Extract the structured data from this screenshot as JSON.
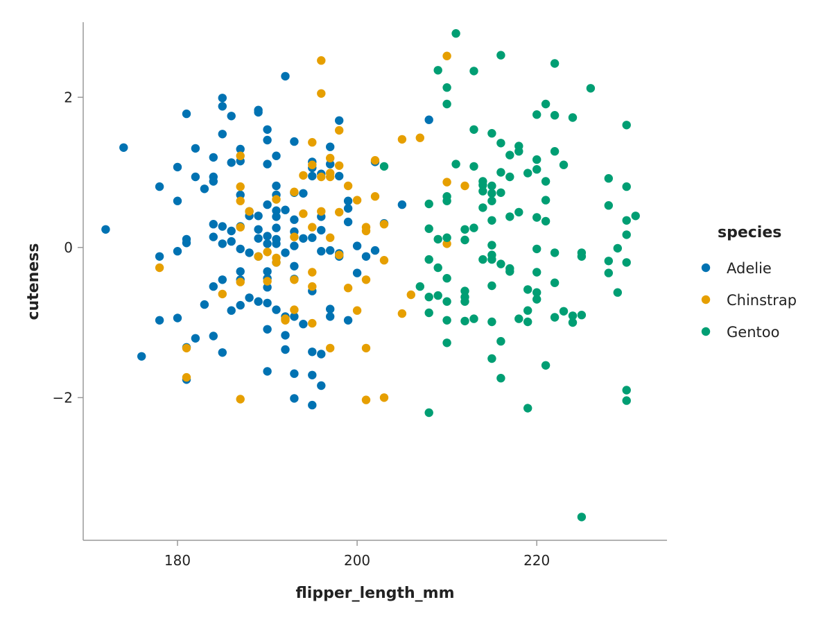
{
  "chart_data": {
    "type": "scatter",
    "xlabel": "flipper_length_mm",
    "ylabel": "cuteness",
    "xlim": [
      169.5,
      234.5
    ],
    "ylim": [
      -3.9,
      3.0
    ],
    "xticks": [
      180,
      200,
      220
    ],
    "xtick_labels": [
      "180",
      "200",
      "220"
    ],
    "yticks": [
      -2,
      0,
      2
    ],
    "ytick_labels": [
      "−2",
      "0",
      "2"
    ],
    "grid": false,
    "legend": {
      "title": "species",
      "placement": "right"
    },
    "series": [
      {
        "name": "Adelie",
        "color": "#0072B2",
        "points": [
          [
            172,
            0.24
          ],
          [
            174,
            1.33
          ],
          [
            176,
            -1.45
          ],
          [
            178,
            0.81
          ],
          [
            178,
            -0.12
          ],
          [
            178,
            -0.97
          ],
          [
            180,
            1.07
          ],
          [
            180,
            0.62
          ],
          [
            180,
            -0.05
          ],
          [
            180,
            -0.94
          ],
          [
            181,
            1.78
          ],
          [
            181,
            0.11
          ],
          [
            181,
            0.06
          ],
          [
            181,
            -1.33
          ],
          [
            181,
            -1.76
          ],
          [
            182,
            1.32
          ],
          [
            182,
            0.94
          ],
          [
            182,
            -1.21
          ],
          [
            183,
            0.78
          ],
          [
            183,
            -0.76
          ],
          [
            184,
            1.2
          ],
          [
            184,
            0.94
          ],
          [
            184,
            0.88
          ],
          [
            184,
            0.31
          ],
          [
            184,
            0.14
          ],
          [
            184,
            -0.52
          ],
          [
            184,
            -1.18
          ],
          [
            185,
            1.99
          ],
          [
            185,
            1.88
          ],
          [
            185,
            1.51
          ],
          [
            185,
            0.28
          ],
          [
            185,
            0.05
          ],
          [
            185,
            -0.43
          ],
          [
            185,
            -1.4
          ],
          [
            186,
            1.75
          ],
          [
            186,
            1.13
          ],
          [
            186,
            0.22
          ],
          [
            186,
            0.08
          ],
          [
            186,
            -0.84
          ],
          [
            187,
            1.31
          ],
          [
            187,
            1.15
          ],
          [
            187,
            0.7
          ],
          [
            187,
            0.28
          ],
          [
            187,
            -0.02
          ],
          [
            187,
            -0.32
          ],
          [
            187,
            -0.43
          ],
          [
            187,
            -0.77
          ],
          [
            188,
            0.48
          ],
          [
            188,
            0.42
          ],
          [
            188,
            -0.07
          ],
          [
            188,
            -0.67
          ],
          [
            189,
            1.83
          ],
          [
            189,
            1.8
          ],
          [
            189,
            0.42
          ],
          [
            189,
            0.24
          ],
          [
            189,
            0.12
          ],
          [
            189,
            -0.12
          ],
          [
            189,
            -0.72
          ],
          [
            190,
            1.57
          ],
          [
            190,
            1.43
          ],
          [
            190,
            1.11
          ],
          [
            190,
            0.57
          ],
          [
            190,
            0.15
          ],
          [
            190,
            0.05
          ],
          [
            190,
            -0.32
          ],
          [
            190,
            -0.41
          ],
          [
            190,
            -0.53
          ],
          [
            190,
            -0.74
          ],
          [
            190,
            -1.09
          ],
          [
            190,
            -1.65
          ],
          [
            191,
            1.22
          ],
          [
            191,
            0.82
          ],
          [
            191,
            0.7
          ],
          [
            191,
            0.49
          ],
          [
            191,
            0.41
          ],
          [
            191,
            0.26
          ],
          [
            191,
            0.11
          ],
          [
            191,
            0.05
          ],
          [
            191,
            -0.2
          ],
          [
            191,
            -0.83
          ],
          [
            192,
            2.28
          ],
          [
            192,
            0.5
          ],
          [
            192,
            -0.07
          ],
          [
            192,
            -0.92
          ],
          [
            192,
            -1.17
          ],
          [
            192,
            -1.36
          ],
          [
            193,
            1.41
          ],
          [
            193,
            0.73
          ],
          [
            193,
            0.37
          ],
          [
            193,
            0.21
          ],
          [
            193,
            0.02
          ],
          [
            193,
            -0.25
          ],
          [
            193,
            -0.42
          ],
          [
            193,
            -0.92
          ],
          [
            193,
            -1.68
          ],
          [
            193,
            -2.01
          ],
          [
            194,
            0.72
          ],
          [
            194,
            0.12
          ],
          [
            194,
            -1.02
          ],
          [
            195,
            1.14
          ],
          [
            195,
            1.06
          ],
          [
            195,
            0.95
          ],
          [
            195,
            0.13
          ],
          [
            195,
            -0.58
          ],
          [
            195,
            -1.39
          ],
          [
            195,
            -1.7
          ],
          [
            195,
            -2.1
          ],
          [
            196,
            0.98
          ],
          [
            196,
            0.41
          ],
          [
            196,
            0.23
          ],
          [
            196,
            -0.05
          ],
          [
            196,
            -1.42
          ],
          [
            196,
            -1.84
          ],
          [
            197,
            1.34
          ],
          [
            197,
            1.11
          ],
          [
            197,
            -0.04
          ],
          [
            197,
            -0.82
          ],
          [
            197,
            -0.92
          ],
          [
            198,
            1.69
          ],
          [
            198,
            0.95
          ],
          [
            198,
            -0.08
          ],
          [
            198,
            -0.12
          ],
          [
            199,
            0.62
          ],
          [
            199,
            0.52
          ],
          [
            199,
            0.34
          ],
          [
            199,
            -0.97
          ],
          [
            200,
            0.02
          ],
          [
            200,
            -0.34
          ],
          [
            201,
            -0.12
          ],
          [
            202,
            1.14
          ],
          [
            202,
            -0.04
          ],
          [
            203,
            0.32
          ],
          [
            205,
            0.57
          ],
          [
            208,
            1.7
          ]
        ]
      },
      {
        "name": "Chinstrap",
        "color": "#E69F00",
        "points": [
          [
            178,
            -0.27
          ],
          [
            181,
            -1.34
          ],
          [
            181,
            -1.73
          ],
          [
            185,
            -0.62
          ],
          [
            187,
            1.22
          ],
          [
            187,
            0.81
          ],
          [
            187,
            0.62
          ],
          [
            187,
            0.27
          ],
          [
            187,
            -0.46
          ],
          [
            187,
            -2.02
          ],
          [
            188,
            0.48
          ],
          [
            189,
            -0.12
          ],
          [
            190,
            -0.06
          ],
          [
            190,
            -0.45
          ],
          [
            191,
            0.64
          ],
          [
            191,
            -0.14
          ],
          [
            191,
            -0.2
          ],
          [
            192,
            -0.95
          ],
          [
            192,
            -0.97
          ],
          [
            193,
            0.74
          ],
          [
            193,
            0.14
          ],
          [
            193,
            -0.43
          ],
          [
            193,
            -0.83
          ],
          [
            194,
            0.96
          ],
          [
            194,
            0.45
          ],
          [
            195,
            1.4
          ],
          [
            195,
            1.1
          ],
          [
            195,
            0.27
          ],
          [
            195,
            -0.33
          ],
          [
            195,
            -0.52
          ],
          [
            195,
            -1.01
          ],
          [
            196,
            2.49
          ],
          [
            196,
            2.05
          ],
          [
            196,
            0.94
          ],
          [
            196,
            0.48
          ],
          [
            197,
            1.19
          ],
          [
            197,
            0.99
          ],
          [
            197,
            0.94
          ],
          [
            197,
            0.13
          ],
          [
            197,
            -1.34
          ],
          [
            198,
            1.56
          ],
          [
            198,
            1.09
          ],
          [
            198,
            0.47
          ],
          [
            198,
            -0.1
          ],
          [
            199,
            0.82
          ],
          [
            199,
            -0.54
          ],
          [
            200,
            0.63
          ],
          [
            200,
            -0.84
          ],
          [
            201,
            0.27
          ],
          [
            201,
            0.22
          ],
          [
            201,
            -0.43
          ],
          [
            201,
            -1.34
          ],
          [
            201,
            -2.03
          ],
          [
            202,
            1.16
          ],
          [
            202,
            0.68
          ],
          [
            203,
            0.31
          ],
          [
            203,
            -0.17
          ],
          [
            203,
            -2.0
          ],
          [
            205,
            1.44
          ],
          [
            205,
            -0.88
          ],
          [
            206,
            -0.63
          ],
          [
            207,
            1.46
          ],
          [
            210,
            2.55
          ],
          [
            210,
            0.87
          ],
          [
            210,
            0.05
          ],
          [
            212,
            0.82
          ]
        ]
      },
      {
        "name": "Gentoo",
        "color": "#009E73",
        "points": [
          [
            203,
            1.08
          ],
          [
            207,
            -0.52
          ],
          [
            208,
            0.58
          ],
          [
            208,
            0.25
          ],
          [
            208,
            -0.16
          ],
          [
            208,
            -0.66
          ],
          [
            208,
            -0.87
          ],
          [
            208,
            -2.2
          ],
          [
            209,
            2.36
          ],
          [
            209,
            0.11
          ],
          [
            209,
            -0.27
          ],
          [
            209,
            -0.64
          ],
          [
            210,
            2.13
          ],
          [
            210,
            1.91
          ],
          [
            210,
            0.68
          ],
          [
            210,
            0.62
          ],
          [
            210,
            0.13
          ],
          [
            210,
            -0.41
          ],
          [
            210,
            -0.72
          ],
          [
            210,
            -0.97
          ],
          [
            210,
            -1.27
          ],
          [
            211,
            2.85
          ],
          [
            211,
            1.11
          ],
          [
            212,
            0.24
          ],
          [
            212,
            0.1
          ],
          [
            212,
            -0.58
          ],
          [
            212,
            -0.66
          ],
          [
            212,
            -0.72
          ],
          [
            212,
            -0.98
          ],
          [
            213,
            2.35
          ],
          [
            213,
            1.57
          ],
          [
            213,
            1.08
          ],
          [
            213,
            0.26
          ],
          [
            213,
            -0.95
          ],
          [
            214,
            0.88
          ],
          [
            214,
            0.83
          ],
          [
            214,
            0.75
          ],
          [
            214,
            0.53
          ],
          [
            214,
            -0.16
          ],
          [
            215,
            1.52
          ],
          [
            215,
            0.82
          ],
          [
            215,
            0.72
          ],
          [
            215,
            0.62
          ],
          [
            215,
            0.36
          ],
          [
            215,
            0.03
          ],
          [
            215,
            -0.1
          ],
          [
            215,
            -0.16
          ],
          [
            215,
            -0.51
          ],
          [
            215,
            -0.99
          ],
          [
            215,
            -1.48
          ],
          [
            216,
            2.56
          ],
          [
            216,
            1.39
          ],
          [
            216,
            1.0
          ],
          [
            216,
            0.73
          ],
          [
            216,
            -0.22
          ],
          [
            216,
            -1.25
          ],
          [
            216,
            -1.74
          ],
          [
            217,
            1.23
          ],
          [
            217,
            0.94
          ],
          [
            217,
            0.41
          ],
          [
            217,
            -0.28
          ],
          [
            217,
            -0.32
          ],
          [
            218,
            1.35
          ],
          [
            218,
            1.28
          ],
          [
            218,
            0.47
          ],
          [
            218,
            -0.95
          ],
          [
            219,
            0.99
          ],
          [
            219,
            -0.56
          ],
          [
            219,
            -0.84
          ],
          [
            219,
            -0.99
          ],
          [
            219,
            -2.14
          ],
          [
            220,
            1.77
          ],
          [
            220,
            1.17
          ],
          [
            220,
            1.04
          ],
          [
            220,
            0.4
          ],
          [
            220,
            -0.02
          ],
          [
            220,
            -0.33
          ],
          [
            220,
            -0.6
          ],
          [
            220,
            -0.69
          ],
          [
            221,
            1.91
          ],
          [
            221,
            0.88
          ],
          [
            221,
            0.63
          ],
          [
            221,
            0.35
          ],
          [
            221,
            -1.57
          ],
          [
            222,
            2.45
          ],
          [
            222,
            1.76
          ],
          [
            222,
            1.28
          ],
          [
            222,
            -0.07
          ],
          [
            222,
            -0.47
          ],
          [
            222,
            -0.93
          ],
          [
            223,
            1.1
          ],
          [
            223,
            -0.85
          ],
          [
            224,
            1.73
          ],
          [
            224,
            -0.91
          ],
          [
            224,
            -1.0
          ],
          [
            225,
            -0.07
          ],
          [
            225,
            -0.12
          ],
          [
            225,
            -0.9
          ],
          [
            225,
            -3.59
          ],
          [
            226,
            2.12
          ],
          [
            228,
            0.92
          ],
          [
            228,
            0.56
          ],
          [
            228,
            -0.18
          ],
          [
            228,
            -0.34
          ],
          [
            229,
            -0.01
          ],
          [
            229,
            -0.6
          ],
          [
            230,
            1.63
          ],
          [
            230,
            0.81
          ],
          [
            230,
            0.36
          ],
          [
            230,
            0.17
          ],
          [
            230,
            -0.2
          ],
          [
            230,
            -1.9
          ],
          [
            230,
            -2.04
          ],
          [
            231,
            0.42
          ]
        ]
      }
    ]
  }
}
